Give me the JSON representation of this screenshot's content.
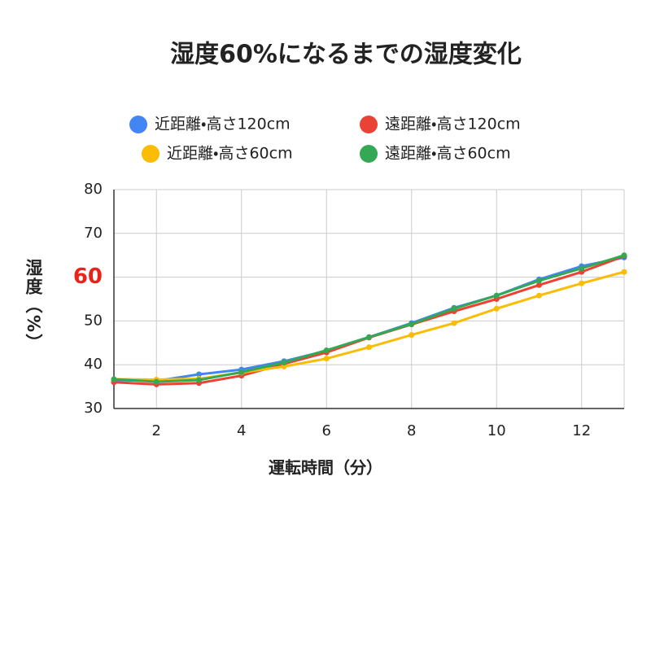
{
  "chart_data": {
    "type": "line",
    "title": "湿度60%になるまでの湿度変化",
    "x_label": "運転時間（分）",
    "y_label": "湿度（%）",
    "x": [
      1,
      2,
      3,
      4,
      5,
      6,
      7,
      8,
      9,
      10,
      11,
      12,
      13
    ],
    "series": [
      {
        "name": "近距離・高さ120cm",
        "color": "#4285f4",
        "values": [
          36.5,
          36.3,
          37.8,
          38.9,
          40.8,
          43.2,
          46.3,
          49.5,
          53.0,
          55.8,
          59.5,
          62.5,
          64.5
        ]
      },
      {
        "name": "遠距離・高さ120cm",
        "color": "#ea4335",
        "values": [
          36.0,
          35.5,
          35.8,
          37.5,
          40.2,
          42.8,
          46.2,
          49.2,
          52.2,
          55.0,
          58.2,
          61.2,
          64.8
        ]
      },
      {
        "name": "近距離・高さ60cm",
        "color": "#fbbc04",
        "values": [
          36.7,
          36.6,
          36.8,
          38.2,
          39.6,
          41.4,
          44.0,
          46.8,
          49.5,
          52.8,
          55.8,
          58.6,
          61.2
        ]
      },
      {
        "name": "遠距離・高さ60cm",
        "color": "#34a853",
        "values": [
          36.7,
          36.1,
          36.5,
          38.3,
          40.5,
          43.3,
          46.3,
          49.3,
          52.8,
          55.8,
          59.2,
          62.0,
          65.0
        ]
      }
    ],
    "xlim": [
      1,
      13
    ],
    "xticks": [
      2,
      4,
      6,
      8,
      10,
      12
    ],
    "ylim": [
      30,
      80
    ],
    "yticks": [
      30,
      40,
      50,
      60,
      70,
      80
    ],
    "ytick_colors": [
      "#222222",
      "#222222",
      "#222222",
      "#e8231b",
      "#222222",
      "#222222"
    ],
    "grid": true
  }
}
